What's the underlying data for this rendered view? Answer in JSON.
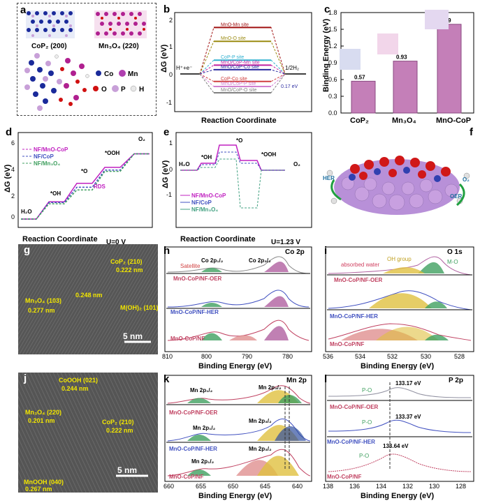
{
  "panel_a": {
    "label": "a",
    "structures": [
      {
        "name": "CoP₂ (200)"
      },
      {
        "name": "Mn₃O₄ (220)"
      }
    ],
    "legend": [
      {
        "name": "Co",
        "color": "#1a2a9a"
      },
      {
        "name": "Mn",
        "color": "#b040b0"
      },
      {
        "name": "O",
        "color": "#d01010"
      },
      {
        "name": "P",
        "color": "#c8a0d8"
      },
      {
        "name": "H",
        "color": "#e8e8e8"
      }
    ]
  },
  "panel_b": {
    "label": "b",
    "ylabel": "ΔG (eV)",
    "xlabel": "Reaction Coordinate",
    "left_state": "H⁺+e⁻",
    "right_state": "1/2H₂",
    "yticks": [
      "2",
      "1",
      "0",
      "-1"
    ],
    "sites": [
      {
        "name": "MnO-Mn site",
        "color": "#a01010",
        "dg": 1.85
      },
      {
        "name": "MnO-O site",
        "color": "#9a8a10",
        "dg": 1.3
      },
      {
        "name": "CoP-P site",
        "color": "#30b0d0",
        "dg": 0.55
      },
      {
        "name": "MnO/CoP-Mn site",
        "color": "#c020a0",
        "dg": 0.35
      },
      {
        "name": "MnO/CoP-Co site",
        "color": "#2a2aa0",
        "dg": 0.17
      },
      {
        "name": "CoP-Co site",
        "color": "#d04040",
        "dg": -0.3
      },
      {
        "name": "MnO/CoP-P site",
        "color": "#d080d0",
        "dg": -0.5
      },
      {
        "name": "MnO/CoP-O site",
        "color": "#808080",
        "dg": -0.75
      }
    ],
    "annotation": "0.17 eV"
  },
  "panel_c": {
    "label": "c",
    "chart_data": {
      "type": "bar",
      "categories": [
        "CoP₂",
        "Mn₃O₄",
        "MnO-CoP"
      ],
      "values": [
        0.57,
        0.93,
        1.59
      ],
      "ylabel": "Binding Energy (eV)",
      "ylim": [
        0,
        1.8
      ],
      "yticks": [
        "0.0",
        "0.3",
        "0.6",
        "0.9",
        "1.2",
        "1.5",
        "1.8"
      ]
    }
  },
  "panel_d": {
    "label": "d",
    "ylabel": "ΔG (eV)",
    "xlabel": "Reaction Coordinate",
    "condition": "U=0 V",
    "yticks": [
      "6",
      "4",
      "2",
      "0"
    ],
    "states": [
      "H₂O",
      "*OH",
      "*O",
      "*OOH",
      "O₂"
    ],
    "rds": "RDS",
    "legend": [
      {
        "name": "NF/MnO-CoP",
        "color": "#c020c0"
      },
      {
        "name": "NF/CoP",
        "color": "#4050c0"
      },
      {
        "name": "NF/Mn₃O₄",
        "color": "#40a060"
      }
    ],
    "chart_data": {
      "type": "line",
      "series": [
        {
          "name": "NF/MnO-CoP",
          "values": [
            0,
            1.3,
            2.7,
            3.9,
            4.92
          ]
        },
        {
          "name": "NF/CoP",
          "values": [
            0,
            1.25,
            2.4,
            3.7,
            4.92
          ]
        },
        {
          "name": "NF/Mn₃O₄",
          "values": [
            0,
            1.15,
            2.2,
            3.6,
            4.92
          ]
        }
      ]
    }
  },
  "panel_e": {
    "label": "e",
    "ylabel": "ΔG (eV)",
    "xlabel": "Reaction Coordinate",
    "condition": "U=1.23 V",
    "yticks": [
      "1",
      "0",
      "-1"
    ],
    "states": [
      "H₂O",
      "*OH",
      "*O",
      "*OOH",
      "O₂"
    ],
    "legend": [
      {
        "name": "NF/MnO-CoP",
        "color": "#c020c0"
      },
      {
        "name": "NF/CoP",
        "color": "#4050c0"
      },
      {
        "name": "NF/Mn₃O₄",
        "color": "#40a080"
      }
    ]
  },
  "panel_f": {
    "label": "f",
    "labels": [
      "HER",
      "O₂",
      "OER"
    ]
  },
  "panel_g": {
    "label": "g",
    "annotations": [
      "CoP₂ (210)",
      "0.222 nm",
      "Mn₃O₄ (103)",
      "0.277 nm",
      "0.248 nm",
      "M(OH)₂ (101)"
    ],
    "scale": "5 nm"
  },
  "panel_h": {
    "label": "h",
    "title": "Co 2p",
    "xlabel": "Binding Energy (eV)",
    "xticks": [
      "810",
      "800",
      "790",
      "780"
    ],
    "samples": [
      "MnO-CoP/NF-OER",
      "MnO-CoP/NF-HER",
      "MnO-CoP/NF"
    ],
    "peaks": [
      "Co 2p₁/₂",
      "Co 2p₃/₂",
      "Satellite"
    ]
  },
  "panel_i": {
    "label": "i",
    "title": "O 1s",
    "xlabel": "Binding Energy (eV)",
    "xticks": [
      "536",
      "534",
      "532",
      "530",
      "528"
    ],
    "samples": [
      "MnO-CoP/NF-OER",
      "MnO-CoP/NF-HER",
      "MnO-CoP/NF"
    ],
    "peaks": [
      "absorbed water",
      "OH group",
      "M-O"
    ]
  },
  "panel_j": {
    "label": "j",
    "annotations": [
      "CoOOH (021)",
      "0.244 nm",
      "Mn₃O₄ (220)",
      "0.201 nm",
      "CoP₂ (210)",
      "0.222 nm",
      "MnOOH (040)",
      "0.267 nm"
    ],
    "scale": "5 nm"
  },
  "panel_k": {
    "label": "k",
    "title": "Mn 2p",
    "xlabel": "Binding Energy (eV)",
    "xticks": [
      "660",
      "655",
      "650",
      "645",
      "640"
    ],
    "samples": [
      "MnO-CoP/NF-OER",
      "MnO-CoP/NF-HER",
      "MnO-CoP/NF"
    ],
    "peaks": [
      "Mn 2p₁/₂",
      "Mn 2p₃/₂"
    ]
  },
  "panel_l": {
    "label": "l",
    "title": "P 2p",
    "xlabel": "Binding Energy (eV)",
    "xticks": [
      "138",
      "136",
      "134",
      "132",
      "130",
      "128"
    ],
    "samples": [
      "MnO-CoP/NF-OER",
      "MnO-CoP/NF-HER",
      "MnO-CoP/NF"
    ],
    "peak": "P-O",
    "values": [
      "133.17 eV",
      "133.37 eV",
      "133.64 eV"
    ]
  }
}
